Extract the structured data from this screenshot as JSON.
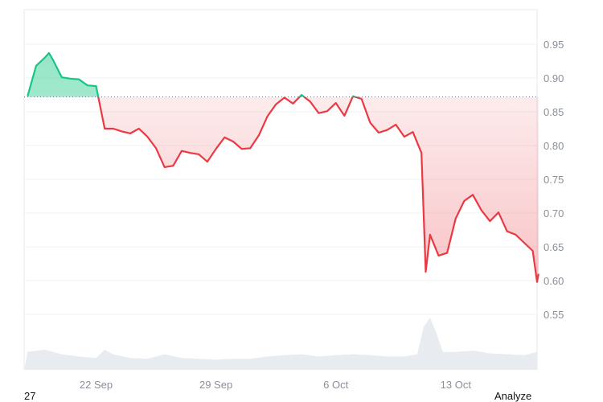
{
  "chart_data": {
    "type": "area",
    "baseline": 0.872,
    "ylim": [
      0.5,
      0.98
    ],
    "yticks": [
      "0.95",
      "0.90",
      "0.85",
      "0.80",
      "0.75",
      "0.70",
      "0.65",
      "0.60",
      "0.55"
    ],
    "xticks": [
      "22 Sep",
      "29 Sep",
      "6 Oct",
      "13 Oct"
    ],
    "grid": true,
    "colors": {
      "above": "#16c784",
      "below": "#ea3943",
      "volume": "#e8ecf1",
      "grid": "#eff2f5",
      "baseline": "#6b7280"
    },
    "series": [
      {
        "points": [
          [
            "18 Sep 00:00",
            0.873
          ],
          [
            "18 Sep 12:00",
            0.918
          ],
          [
            "19 Sep 00:00",
            0.93
          ],
          [
            "19 Sep 06:00",
            0.937
          ],
          [
            "19 Sep 12:00",
            0.926
          ],
          [
            "20 Sep 00:00",
            0.901
          ],
          [
            "20 Sep 12:00",
            0.899
          ],
          [
            "21 Sep 00:00",
            0.898
          ],
          [
            "21 Sep 12:00",
            0.889
          ],
          [
            "22 Sep 00:00",
            0.888
          ],
          [
            "22 Sep 12:00",
            0.825
          ],
          [
            "23 Sep 00:00",
            0.825
          ],
          [
            "23 Sep 12:00",
            0.821
          ],
          [
            "24 Sep 00:00",
            0.818
          ],
          [
            "24 Sep 12:00",
            0.825
          ],
          [
            "25 Sep 00:00",
            0.813
          ],
          [
            "25 Sep 12:00",
            0.796
          ],
          [
            "26 Sep 00:00",
            0.768
          ],
          [
            "26 Sep 12:00",
            0.77
          ],
          [
            "27 Sep 00:00",
            0.792
          ],
          [
            "27 Sep 12:00",
            0.789
          ],
          [
            "28 Sep 00:00",
            0.787
          ],
          [
            "28 Sep 12:00",
            0.776
          ],
          [
            "29 Sep 00:00",
            0.795
          ],
          [
            "29 Sep 12:00",
            0.812
          ],
          [
            "30 Sep 00:00",
            0.806
          ],
          [
            "30 Sep 12:00",
            0.795
          ],
          [
            "1 Oct 00:00",
            0.796
          ],
          [
            "1 Oct 12:00",
            0.815
          ],
          [
            "2 Oct 00:00",
            0.843
          ],
          [
            "2 Oct 12:00",
            0.861
          ],
          [
            "3 Oct 00:00",
            0.871
          ],
          [
            "3 Oct 12:00",
            0.862
          ],
          [
            "4 Oct 00:00",
            0.875
          ],
          [
            "4 Oct 12:00",
            0.865
          ],
          [
            "5 Oct 00:00",
            0.848
          ],
          [
            "5 Oct 12:00",
            0.851
          ],
          [
            "6 Oct 00:00",
            0.863
          ],
          [
            "6 Oct 12:00",
            0.844
          ],
          [
            "7 Oct 00:00",
            0.873
          ],
          [
            "7 Oct 12:00",
            0.869
          ],
          [
            "8 Oct 00:00",
            0.834
          ],
          [
            "8 Oct 12:00",
            0.819
          ],
          [
            "9 Oct 00:00",
            0.823
          ],
          [
            "9 Oct 12:00",
            0.831
          ],
          [
            "10 Oct 00:00",
            0.813
          ],
          [
            "10 Oct 12:00",
            0.82
          ],
          [
            "11 Oct 00:00",
            0.789
          ],
          [
            "11 Oct 06:00",
            0.613
          ],
          [
            "11 Oct 12:00",
            0.668
          ],
          [
            "12 Oct 00:00",
            0.637
          ],
          [
            "12 Oct 12:00",
            0.641
          ],
          [
            "13 Oct 00:00",
            0.692
          ],
          [
            "13 Oct 12:00",
            0.718
          ],
          [
            "14 Oct 00:00",
            0.727
          ],
          [
            "14 Oct 12:00",
            0.704
          ],
          [
            "15 Oct 00:00",
            0.688
          ],
          [
            "15 Oct 12:00",
            0.701
          ],
          [
            "16 Oct 00:00",
            0.673
          ],
          [
            "16 Oct 12:00",
            0.668
          ],
          [
            "17 Oct 00:00",
            0.656
          ],
          [
            "17 Oct 12:00",
            0.644
          ],
          [
            "17 Oct 18:00",
            0.598
          ],
          [
            "17 Oct 20:00",
            0.61
          ]
        ]
      }
    ],
    "volume_relative": [
      [
        "18 Sep 00:00",
        0.25
      ],
      [
        "19 Sep 00:00",
        0.3
      ],
      [
        "20 Sep 00:00",
        0.2
      ],
      [
        "21 Sep 00:00",
        0.15
      ],
      [
        "22 Sep 00:00",
        0.12
      ],
      [
        "22 Sep 12:00",
        0.3
      ],
      [
        "23 Sep 00:00",
        0.2
      ],
      [
        "24 Sep 00:00",
        0.12
      ],
      [
        "25 Sep 00:00",
        0.1
      ],
      [
        "26 Sep 00:00",
        0.2
      ],
      [
        "27 Sep 00:00",
        0.12
      ],
      [
        "28 Sep 00:00",
        0.1
      ],
      [
        "29 Sep 00:00",
        0.08
      ],
      [
        "30 Sep 00:00",
        0.1
      ],
      [
        "1 Oct 00:00",
        0.1
      ],
      [
        "2 Oct 00:00",
        0.15
      ],
      [
        "3 Oct 00:00",
        0.18
      ],
      [
        "4 Oct 00:00",
        0.2
      ],
      [
        "5 Oct 00:00",
        0.15
      ],
      [
        "6 Oct 00:00",
        0.18
      ],
      [
        "7 Oct 00:00",
        0.2
      ],
      [
        "8 Oct 00:00",
        0.18
      ],
      [
        "9 Oct 00:00",
        0.15
      ],
      [
        "10 Oct 00:00",
        0.15
      ],
      [
        "10 Oct 18:00",
        0.2
      ],
      [
        "11 Oct 03:00",
        0.8
      ],
      [
        "11 Oct 12:00",
        1.0
      ],
      [
        "11 Oct 20:00",
        0.7
      ],
      [
        "12 Oct 06:00",
        0.25
      ],
      [
        "13 Oct 00:00",
        0.25
      ],
      [
        "14 Oct 00:00",
        0.28
      ],
      [
        "15 Oct 00:00",
        0.22
      ],
      [
        "16 Oct 00:00",
        0.2
      ],
      [
        "17 Oct 00:00",
        0.18
      ],
      [
        "17 Oct 20:00",
        0.25
      ]
    ]
  },
  "footer": {
    "left_label": "27",
    "right_label": "Analyze"
  }
}
